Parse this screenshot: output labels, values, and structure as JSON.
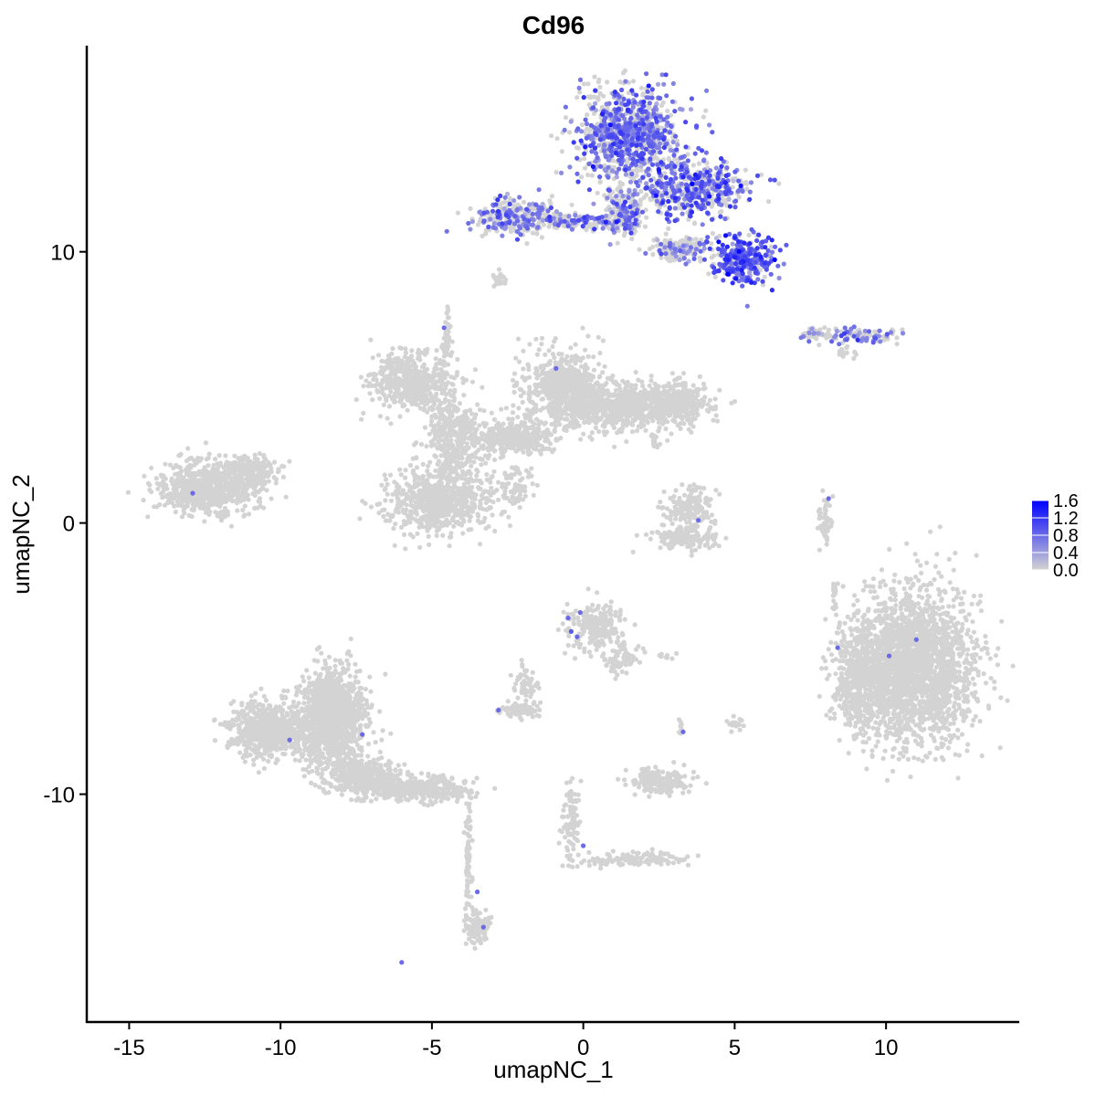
{
  "chart_data": {
    "type": "scatter",
    "title": "Cd96",
    "xlabel": "umapNC_1",
    "ylabel": "umapNC_2",
    "xlim": [
      -16.4,
      14.4
    ],
    "ylim": [
      -18.4,
      17.6
    ],
    "x_ticks": [
      -15,
      -10,
      -5,
      0,
      5,
      10
    ],
    "x_tick_labels": [
      "-15",
      "-10",
      "-5",
      "0",
      "5",
      "10"
    ],
    "y_ticks": [
      -10,
      0,
      10
    ],
    "y_tick_labels": [
      "-10",
      "0",
      "10"
    ],
    "grid": false,
    "legend_position": "right",
    "color_scale": {
      "low_color": "#d3d3d3",
      "high_color": "#0000ff",
      "min": 0.0,
      "max": 1.6,
      "ticks": [
        0.0,
        0.4,
        0.8,
        1.2,
        1.6
      ],
      "tick_labels": [
        "0.0",
        "0.4",
        "0.8",
        "1.2",
        "1.6"
      ]
    },
    "clusters": [
      {
        "cx": 1.5,
        "cy": 14.3,
        "rx": 1.6,
        "ry": 1.6,
        "n": 900,
        "expr_fraction": 0.55,
        "expr_mean": 0.75
      },
      {
        "cx": 3.6,
        "cy": 12.3,
        "rx": 1.7,
        "ry": 1.0,
        "n": 500,
        "expr_fraction": 0.55,
        "expr_mean": 0.8
      },
      {
        "cx": 5.3,
        "cy": 9.7,
        "rx": 0.9,
        "ry": 0.8,
        "n": 300,
        "expr_fraction": 0.75,
        "expr_mean": 0.9
      },
      {
        "cx": -2.3,
        "cy": 11.3,
        "rx": 1.2,
        "ry": 0.6,
        "n": 250,
        "expr_fraction": 0.4,
        "expr_mean": 0.7
      },
      {
        "cx": -0.3,
        "cy": 11.1,
        "rx": 1.2,
        "ry": 0.25,
        "n": 150,
        "expr_fraction": 0.25,
        "expr_mean": 0.7
      },
      {
        "cx": 1.3,
        "cy": 11.4,
        "rx": 0.6,
        "ry": 0.7,
        "n": 200,
        "expr_fraction": 0.3,
        "expr_mean": 0.7
      },
      {
        "cx": 3.2,
        "cy": 10.1,
        "rx": 0.9,
        "ry": 0.4,
        "n": 150,
        "expr_fraction": 0.3,
        "expr_mean": 0.6
      },
      {
        "cx": 9.3,
        "cy": 6.9,
        "rx": 1.0,
        "ry": 0.25,
        "n": 90,
        "expr_fraction": 0.4,
        "expr_mean": 0.7
      },
      {
        "cx": 7.7,
        "cy": 7.0,
        "rx": 0.5,
        "ry": 0.2,
        "n": 40,
        "expr_fraction": 0.2,
        "expr_mean": 0.5
      },
      {
        "cx": -10.3,
        "cy": -7.6,
        "rx": 1.2,
        "ry": 0.9,
        "n": 700,
        "expr_fraction": 0.0,
        "expr_mean": 0
      },
      {
        "cx": -8.3,
        "cy": -7.2,
        "rx": 1.0,
        "ry": 1.7,
        "n": 1200,
        "expr_fraction": 0.0,
        "expr_mean": 0
      },
      {
        "cx": -7.2,
        "cy": -9.4,
        "rx": 1.0,
        "ry": 0.6,
        "n": 400,
        "expr_fraction": 0.0,
        "expr_mean": 0
      },
      {
        "cx": -5.4,
        "cy": -9.8,
        "rx": 1.5,
        "ry": 0.4,
        "n": 350,
        "expr_fraction": 0.0,
        "expr_mean": 0
      },
      {
        "cx": -3.5,
        "cy": -14.9,
        "rx": 0.35,
        "ry": 0.55,
        "n": 120,
        "expr_fraction": 0.0,
        "expr_mean": 0
      },
      {
        "cx": -3.8,
        "cy": -12.3,
        "rx": 0.1,
        "ry": 1.7,
        "n": 80,
        "expr_fraction": 0.0,
        "expr_mean": 0
      },
      {
        "cx": 10.9,
        "cy": -5.3,
        "rx": 1.8,
        "ry": 2.5,
        "n": 2200,
        "expr_fraction": 0.0,
        "expr_mean": 0
      },
      {
        "cx": 9.2,
        "cy": -5.8,
        "rx": 0.9,
        "ry": 1.8,
        "n": 500,
        "expr_fraction": 0.0,
        "expr_mean": 0
      },
      {
        "cx": -12.4,
        "cy": 1.3,
        "rx": 1.5,
        "ry": 0.9,
        "n": 700,
        "expr_fraction": 0.0,
        "expr_mean": 0
      },
      {
        "cx": -11.0,
        "cy": 1.9,
        "rx": 0.8,
        "ry": 0.5,
        "n": 200,
        "expr_fraction": 0.0,
        "expr_mean": 0
      },
      {
        "cx": -5.7,
        "cy": 5.2,
        "rx": 1.2,
        "ry": 0.9,
        "n": 500,
        "expr_fraction": 0.0,
        "expr_mean": 0
      },
      {
        "cx": -4.8,
        "cy": 0.8,
        "rx": 1.5,
        "ry": 1.1,
        "n": 700,
        "expr_fraction": 0.0,
        "expr_mean": 0
      },
      {
        "cx": -4.3,
        "cy": 3.2,
        "rx": 0.8,
        "ry": 1.3,
        "n": 350,
        "expr_fraction": 0.0,
        "expr_mean": 0
      },
      {
        "cx": -0.7,
        "cy": 5.0,
        "rx": 1.1,
        "ry": 1.2,
        "n": 550,
        "expr_fraction": 0.0,
        "expr_mean": 0
      },
      {
        "cx": 1.2,
        "cy": 4.3,
        "rx": 2.0,
        "ry": 0.8,
        "n": 700,
        "expr_fraction": 0.0,
        "expr_mean": 0
      },
      {
        "cx": 3.1,
        "cy": 4.4,
        "rx": 1.0,
        "ry": 0.7,
        "n": 300,
        "expr_fraction": 0.0,
        "expr_mean": 0
      },
      {
        "cx": -2.3,
        "cy": 3.2,
        "rx": 1.2,
        "ry": 0.6,
        "n": 350,
        "expr_fraction": 0.0,
        "expr_mean": 0
      },
      {
        "cx": -4.5,
        "cy": 6.8,
        "rx": 0.15,
        "ry": 0.9,
        "n": 40,
        "expr_fraction": 0.0,
        "expr_mean": 0
      },
      {
        "cx": -2.2,
        "cy": 1.3,
        "rx": 0.6,
        "ry": 0.7,
        "n": 80,
        "expr_fraction": 0.0,
        "expr_mean": 0
      },
      {
        "cx": 3.5,
        "cy": 0.5,
        "rx": 0.7,
        "ry": 0.7,
        "n": 170,
        "expr_fraction": 0.0,
        "expr_mean": 0
      },
      {
        "cx": 3.3,
        "cy": -0.6,
        "rx": 1.0,
        "ry": 0.35,
        "n": 130,
        "expr_fraction": 0.0,
        "expr_mean": 0
      },
      {
        "cx": 0.4,
        "cy": -3.8,
        "rx": 0.9,
        "ry": 0.8,
        "n": 220,
        "expr_fraction": 0.0,
        "expr_mean": 0
      },
      {
        "cx": 1.3,
        "cy": -5.0,
        "rx": 0.6,
        "ry": 0.5,
        "n": 80,
        "expr_fraction": 0.0,
        "expr_mean": 0
      },
      {
        "cx": -1.9,
        "cy": -6.0,
        "rx": 0.35,
        "ry": 0.6,
        "n": 60,
        "expr_fraction": 0.0,
        "expr_mean": 0
      },
      {
        "cx": -2.2,
        "cy": -6.9,
        "rx": 0.6,
        "ry": 0.25,
        "n": 90,
        "expr_fraction": 0.0,
        "expr_mean": 0
      },
      {
        "cx": 2.5,
        "cy": -9.5,
        "rx": 0.9,
        "ry": 0.45,
        "n": 180,
        "expr_fraction": 0.0,
        "expr_mean": 0
      },
      {
        "cx": -0.4,
        "cy": -11.0,
        "rx": 0.25,
        "ry": 1.3,
        "n": 90,
        "expr_fraction": 0.0,
        "expr_mean": 0
      },
      {
        "cx": 1.6,
        "cy": -12.4,
        "rx": 1.6,
        "ry": 0.25,
        "n": 130,
        "expr_fraction": 0.0,
        "expr_mean": 0
      },
      {
        "cx": 8.0,
        "cy": 0.0,
        "rx": 0.2,
        "ry": 0.7,
        "n": 60,
        "expr_fraction": 0.0,
        "expr_mean": 0
      },
      {
        "cx": 8.3,
        "cy": -2.6,
        "rx": 0.06,
        "ry": 0.6,
        "n": 20,
        "expr_fraction": 0.0,
        "expr_mean": 0
      },
      {
        "cx": -2.8,
        "cy": 9.0,
        "rx": 0.2,
        "ry": 0.3,
        "n": 25,
        "expr_fraction": 0.0,
        "expr_mean": 0
      },
      {
        "cx": 8.6,
        "cy": 6.3,
        "rx": 0.35,
        "ry": 0.2,
        "n": 15,
        "expr_fraction": 0.0,
        "expr_mean": 0
      },
      {
        "cx": 5.0,
        "cy": -7.4,
        "rx": 0.25,
        "ry": 0.2,
        "n": 20,
        "expr_fraction": 0.0,
        "expr_mean": 0
      },
      {
        "cx": 3.2,
        "cy": -7.6,
        "rx": 0.06,
        "ry": 0.4,
        "n": 10,
        "expr_fraction": 0.0,
        "expr_mean": 0
      },
      {
        "cx": 2.8,
        "cy": -4.9,
        "rx": 0.3,
        "ry": 0.08,
        "n": 8,
        "expr_fraction": 0.0,
        "expr_mean": 0
      },
      {
        "cx": 2.4,
        "cy": 3.0,
        "rx": 0.2,
        "ry": 0.4,
        "n": 12,
        "expr_fraction": 0.0,
        "expr_mean": 0
      }
    ],
    "highlighted_points": [
      {
        "x": -12.9,
        "y": 1.1,
        "v": 0.8
      },
      {
        "x": -4.6,
        "y": 7.2,
        "v": 0.8
      },
      {
        "x": -0.9,
        "y": 5.7,
        "v": 0.8
      },
      {
        "x": -9.7,
        "y": -8.0,
        "v": 0.8
      },
      {
        "x": -7.3,
        "y": -7.8,
        "v": 0.8
      },
      {
        "x": -2.8,
        "y": -6.9,
        "v": 0.8
      },
      {
        "x": -0.5,
        "y": -3.5,
        "v": 0.8
      },
      {
        "x": -0.4,
        "y": -4.0,
        "v": 0.9
      },
      {
        "x": -0.2,
        "y": -4.2,
        "v": 0.8
      },
      {
        "x": -0.1,
        "y": -3.3,
        "v": 0.8
      },
      {
        "x": 3.3,
        "y": -7.7,
        "v": 0.8
      },
      {
        "x": 3.8,
        "y": 0.1,
        "v": 0.8
      },
      {
        "x": 8.1,
        "y": 0.9,
        "v": 0.8
      },
      {
        "x": 8.4,
        "y": -4.6,
        "v": 0.8
      },
      {
        "x": 10.1,
        "y": -4.9,
        "v": 0.8
      },
      {
        "x": 11.0,
        "y": -4.3,
        "v": 0.8
      },
      {
        "x": -3.5,
        "y": -13.6,
        "v": 0.8
      },
      {
        "x": -3.3,
        "y": -14.9,
        "v": 0.8
      },
      {
        "x": -6.0,
        "y": -16.2,
        "v": 0.8
      },
      {
        "x": 0.0,
        "y": -11.9,
        "v": 0.8
      },
      {
        "x": 3.6,
        "y": 12.5,
        "v": 1.6
      },
      {
        "x": 4.7,
        "y": 10.6,
        "v": 1.5
      },
      {
        "x": 2.5,
        "y": 13.0,
        "v": 1.4
      },
      {
        "x": 1.1,
        "y": 11.1,
        "v": 1.4
      },
      {
        "x": 5.2,
        "y": 9.6,
        "v": 1.3
      }
    ]
  }
}
